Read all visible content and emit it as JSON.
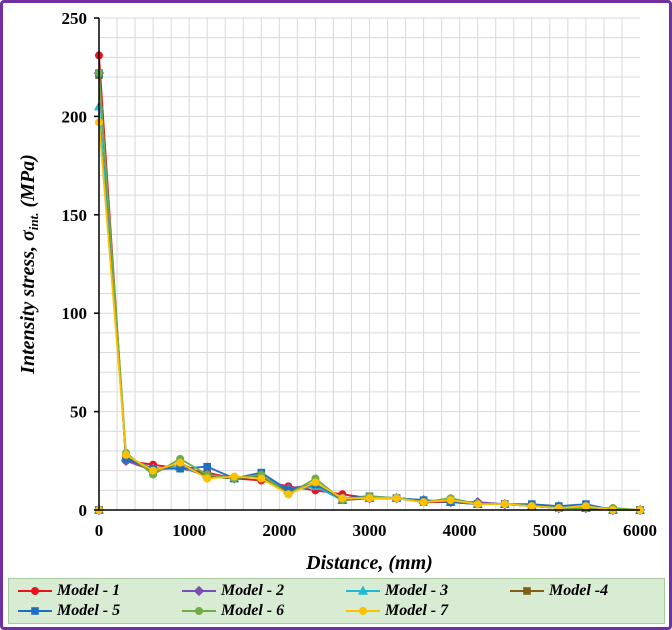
{
  "chart_data": {
    "type": "line",
    "xlabel": "Distance, (mm)",
    "ylabel_main": "Intensity stress, σ",
    "ylabel_sub": "int.",
    "ylabel_unit": " (MPa)",
    "xlim": [
      0,
      6000
    ],
    "ylim": [
      0,
      250
    ],
    "xticks": [
      0,
      1000,
      2000,
      3000,
      4000,
      5000,
      6000
    ],
    "yticks": [
      0,
      50,
      100,
      150,
      200,
      250
    ],
    "grid": true,
    "legend_position": "bottom",
    "x": [
      0,
      300,
      600,
      900,
      1200,
      1500,
      1800,
      2100,
      2400,
      2700,
      3000,
      3300,
      3600,
      3900,
      4200,
      4500,
      4800,
      5100,
      5400,
      5700,
      6000
    ],
    "series": [
      {
        "name": "Model - 1",
        "color": "#e8141c",
        "marker": "circle",
        "start": {
          "x": 0,
          "y": 231
        },
        "values": [
          0,
          25,
          23,
          21,
          19,
          16,
          15,
          12,
          10,
          8,
          6,
          6,
          4,
          4,
          3,
          3,
          2,
          1,
          1,
          0,
          0
        ]
      },
      {
        "name": "Model - 2",
        "color": "#7a4fb5",
        "marker": "diamond",
        "start": {
          "x": 0,
          "y": 222
        },
        "values": [
          0,
          25,
          20,
          22,
          17,
          16,
          17,
          11,
          13,
          6,
          6,
          6,
          5,
          4,
          4,
          3,
          2,
          1,
          1,
          0,
          0
        ]
      },
      {
        "name": "Model - 3",
        "color": "#1fb9d4",
        "marker": "triangle",
        "start": {
          "x": 0,
          "y": 205
        },
        "values": [
          0,
          27,
          21,
          22,
          18,
          16,
          17,
          10,
          12,
          5,
          6,
          6,
          5,
          4,
          3,
          3,
          2,
          2,
          1,
          0,
          0
        ]
      },
      {
        "name": "Model -4",
        "color": "#7f6014",
        "marker": "square",
        "start": {
          "x": 0,
          "y": 221
        },
        "values": [
          0,
          27,
          19,
          24,
          17,
          16,
          17,
          9,
          14,
          5,
          6,
          6,
          4,
          5,
          3,
          3,
          2,
          1,
          1,
          0,
          0
        ]
      },
      {
        "name": "Model - 5",
        "color": "#1f6fc0",
        "marker": "square",
        "start": {
          "x": 0,
          "y": 222
        },
        "values": [
          0,
          26,
          21,
          21,
          22,
          16,
          19,
          10,
          13,
          6,
          7,
          6,
          5,
          4,
          3,
          3,
          3,
          2,
          3,
          0,
          0
        ]
      },
      {
        "name": "Model - 6",
        "color": "#70ad47",
        "marker": "circle",
        "start": {
          "x": 0,
          "y": 222
        },
        "values": [
          0,
          29,
          18,
          26,
          18,
          16,
          18,
          8,
          16,
          5,
          7,
          6,
          4,
          6,
          3,
          3,
          2,
          1,
          1,
          1,
          0
        ]
      },
      {
        "name": "Model - 7",
        "color": "#ffc000",
        "marker": "circle",
        "start": {
          "x": 0,
          "y": 197
        },
        "values": [
          0,
          28,
          20,
          24,
          16,
          17,
          16,
          8,
          14,
          6,
          6,
          6,
          4,
          5,
          3,
          3,
          2,
          1,
          2,
          0,
          0
        ]
      }
    ]
  }
}
